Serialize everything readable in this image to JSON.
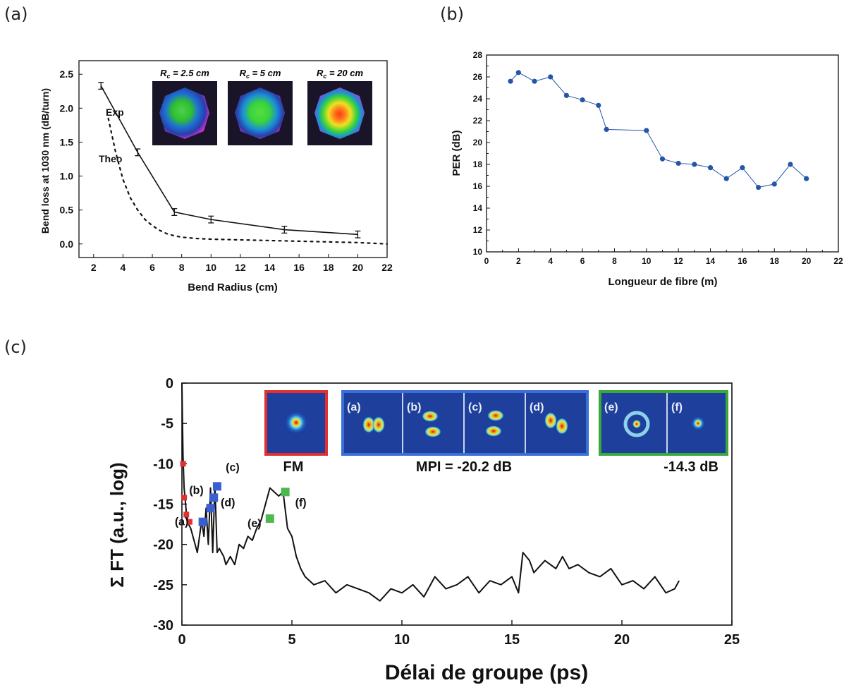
{
  "chart_data": [
    {
      "panel": "(a)",
      "type": "line",
      "xlabel": "Bend Radius (cm)",
      "ylabel": "Bend loss at 1030 nm (dB/turn)",
      "xlim": [
        1,
        22
      ],
      "ylim": [
        -0.2,
        2.7
      ],
      "xticks": [
        2,
        4,
        6,
        8,
        10,
        12,
        14,
        16,
        18,
        20,
        22
      ],
      "yticks": [
        0.0,
        0.5,
        1.0,
        1.5,
        2.0,
        2.5
      ],
      "series": [
        {
          "name": "Exp",
          "x": [
            2.5,
            5,
            7.5,
            10,
            15,
            20
          ],
          "values": [
            2.33,
            1.35,
            0.47,
            0.36,
            0.21,
            0.14
          ],
          "errors": [
            0.05,
            0.05,
            0.05,
            0.05,
            0.05,
            0.05
          ],
          "style": "solid"
        },
        {
          "name": "Theo",
          "x": [
            3,
            3.5,
            4,
            4.5,
            5,
            5.5,
            6,
            6.5,
            7,
            7.5,
            8,
            9,
            10,
            12,
            14,
            16,
            18,
            20,
            22
          ],
          "values": [
            1.85,
            1.35,
            0.95,
            0.68,
            0.5,
            0.36,
            0.27,
            0.2,
            0.15,
            0.12,
            0.1,
            0.08,
            0.07,
            0.06,
            0.05,
            0.04,
            0.03,
            0.02,
            0.0
          ],
          "style": "dotted"
        }
      ],
      "insets": [
        {
          "label": "R",
          "sub": "c",
          "rest": " = 2.5 cm",
          "core": "#2fbf2f",
          "mid": "#1e6fd6",
          "edge": "#c02ed0"
        },
        {
          "label": "R",
          "sub": "c",
          "rest": " = 5 cm",
          "core": "#3ad43a",
          "mid": "#1a8fd8",
          "edge": "#c02ed0"
        },
        {
          "label": "R",
          "sub": "c",
          "rest": " = 20 cm",
          "core": "#ff5a1e",
          "mid": "#f0e020",
          "edge": "#c02ed0"
        }
      ]
    },
    {
      "panel": "(b)",
      "type": "line",
      "xlabel": "Longueur de fibre (m)",
      "ylabel": "PER (dB)",
      "xlim": [
        0,
        22
      ],
      "ylim": [
        10,
        28
      ],
      "xticks": [
        0,
        2,
        4,
        6,
        8,
        10,
        12,
        14,
        16,
        18,
        20,
        22
      ],
      "yticks": [
        10,
        12,
        14,
        16,
        18,
        20,
        22,
        24,
        26,
        28
      ],
      "series": [
        {
          "x": [
            1.5,
            2,
            3,
            4,
            5,
            6,
            7,
            7.5,
            10,
            11,
            12,
            13,
            14,
            15,
            16,
            17,
            18,
            19,
            20
          ],
          "values": [
            25.6,
            26.4,
            25.6,
            26.0,
            24.3,
            23.9,
            23.4,
            21.2,
            21.1,
            18.5,
            18.1,
            18.0,
            17.7,
            16.7,
            17.7,
            15.9,
            16.2,
            18.0,
            16.7
          ],
          "color": "#2456a8"
        }
      ]
    },
    {
      "panel": "(c)",
      "type": "line",
      "xlabel": "Délai de groupe (ps)",
      "ylabel": "Σ FT (a.u., log)",
      "xlim": [
        0,
        25
      ],
      "ylim": [
        -30,
        0
      ],
      "xticks": [
        0,
        5,
        10,
        15,
        20,
        25
      ],
      "yticks": [
        0,
        -5,
        -10,
        -15,
        -20,
        -25,
        -30
      ],
      "annotations": {
        "fm": "FM",
        "mpi": "MPI = -20.2 dB",
        "mpi2": "-14.3 dB",
        "peaks": [
          {
            "label": "(a)",
            "x": 0.95,
            "y": -17.2,
            "color": "#3a5fd0"
          },
          {
            "label": "(b)",
            "x": 1.3,
            "y": -15.5,
            "color": "#3a5fd0"
          },
          {
            "label": "(c)",
            "x": 1.6,
            "y": -12.8,
            "color": "#3a5fd0"
          },
          {
            "label": "(d)",
            "x": 1.45,
            "y": -14.2,
            "color": "#3a5fd0"
          },
          {
            "label": "(e)",
            "x": 4.0,
            "y": -16.8,
            "color": "#4db84d"
          },
          {
            "label": "(f)",
            "x": 4.7,
            "y": -13.5,
            "color": "#4db84d"
          }
        ],
        "inset_labels": [
          "(a)",
          "(b)",
          "(c)",
          "(d)",
          "(e)",
          "(f)"
        ]
      },
      "series": [
        {
          "x": [
            0,
            0.05,
            0.1,
            0.2,
            0.3,
            0.4,
            0.5,
            0.6,
            0.7,
            0.8,
            0.9,
            1.0,
            1.1,
            1.2,
            1.3,
            1.4,
            1.5,
            1.6,
            1.7,
            1.8,
            1.9,
            2.0,
            2.2,
            2.4,
            2.6,
            2.8,
            3.0,
            3.2,
            3.4,
            3.6,
            3.8,
            4.0,
            4.2,
            4.4,
            4.6,
            4.8,
            5.0,
            5.2,
            5.4,
            5.6,
            6.0,
            6.5,
            7.0,
            7.5,
            8.0,
            8.5,
            9.0,
            9.5,
            10.0,
            10.5,
            11.0,
            11.5,
            12.0,
            12.5,
            13.0,
            13.5,
            14.0,
            14.5,
            15.0,
            15.3,
            15.5,
            15.8,
            16.0,
            16.5,
            17.0,
            17.3,
            17.6,
            18.0,
            18.5,
            19.0,
            19.5,
            20.0,
            20.5,
            21.0,
            21.5,
            22.0,
            22.4,
            22.6
          ],
          "values": [
            0,
            -9,
            -13,
            -16,
            -17.5,
            -18,
            -19,
            -20,
            -21,
            -19,
            -17,
            -19,
            -15.5,
            -20,
            -13,
            -21,
            -12.5,
            -21,
            -20.5,
            -21,
            -21.5,
            -22.5,
            -21.5,
            -22.5,
            -20,
            -20.5,
            -19,
            -19.5,
            -18,
            -17,
            -15,
            -13,
            -13.5,
            -14,
            -13.5,
            -18,
            -19,
            -21.5,
            -23,
            -24,
            -25,
            -24.5,
            -26,
            -25,
            -25.5,
            -26,
            -27,
            -25.5,
            -26,
            -25,
            -26.5,
            -24,
            -25.5,
            -25,
            -24,
            -26,
            -24.5,
            -25,
            -24,
            -26,
            -21,
            -22,
            -23.5,
            -22,
            -23,
            -21.5,
            -23,
            -22.5,
            -23.5,
            -24,
            -23,
            -25,
            -24.5,
            -25.5,
            -24,
            -26,
            -25.5,
            -24.5
          ]
        }
      ]
    }
  ],
  "panel_labels": {
    "a": "(a)",
    "b": "(b)",
    "c": "(c)"
  },
  "legend_a": {
    "exp": "Exp",
    "theo": "Theo"
  }
}
